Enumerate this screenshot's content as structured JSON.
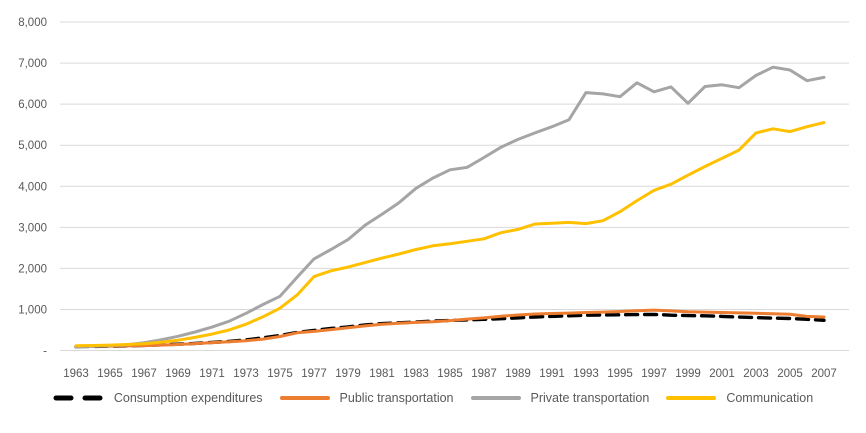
{
  "chart": {
    "background": "#FFFFFF",
    "grid_color": "#D9D9D9",
    "label_color": "#595959",
    "y_axis": {
      "ticks": [
        {
          "value": 0,
          "label": "-"
        },
        {
          "value": 1000,
          "label": "1,000"
        },
        {
          "value": 2000,
          "label": "2,000"
        },
        {
          "value": 3000,
          "label": "3,000"
        },
        {
          "value": 4000,
          "label": "4,000"
        },
        {
          "value": 5000,
          "label": "5,000"
        },
        {
          "value": 6000,
          "label": "6,000"
        },
        {
          "value": 7000,
          "label": "7,000"
        },
        {
          "value": 8000,
          "label": "8,000"
        }
      ]
    },
    "x_axis": {
      "tick_years": [
        1963,
        1965,
        1967,
        1969,
        1971,
        1973,
        1975,
        1977,
        1979,
        1981,
        1983,
        1985,
        1987,
        1989,
        1991,
        1993,
        1995,
        1997,
        1999,
        2001,
        2003,
        2005,
        2007
      ]
    }
  },
  "chart_data": {
    "type": "line",
    "title": "",
    "xlabel": "",
    "ylabel": "",
    "ylim": [
      0,
      8000
    ],
    "grid": true,
    "legend_position": "bottom",
    "x": [
      1963,
      1964,
      1965,
      1966,
      1967,
      1968,
      1969,
      1970,
      1971,
      1972,
      1973,
      1974,
      1975,
      1976,
      1977,
      1978,
      1979,
      1980,
      1981,
      1982,
      1983,
      1984,
      1985,
      1986,
      1987,
      1988,
      1989,
      1990,
      1991,
      1992,
      1993,
      1994,
      1995,
      1996,
      1997,
      1998,
      1999,
      2000,
      2001,
      2002,
      2003,
      2004,
      2005,
      2006,
      2007
    ],
    "series": [
      {
        "name": "Consumption expenditures",
        "color": "#000000",
        "style": "dashed",
        "values": [
          95,
          100,
          105,
          113,
          123,
          138,
          153,
          173,
          198,
          222,
          258,
          310,
          365,
          440,
          490,
          535,
          575,
          620,
          655,
          675,
          695,
          715,
          730,
          745,
          760,
          775,
          795,
          815,
          830,
          845,
          860,
          865,
          870,
          875,
          880,
          860,
          850,
          845,
          830,
          815,
          800,
          790,
          780,
          760,
          735
        ]
      },
      {
        "name": "Public transportation",
        "color": "#ED7D31",
        "style": "solid",
        "values": [
          100,
          103,
          107,
          112,
          120,
          132,
          147,
          167,
          192,
          213,
          238,
          278,
          340,
          430,
          465,
          510,
          552,
          600,
          640,
          665,
          685,
          700,
          728,
          765,
          795,
          835,
          865,
          890,
          900,
          910,
          925,
          935,
          950,
          970,
          985,
          965,
          945,
          935,
          925,
          915,
          905,
          895,
          885,
          830,
          815
        ]
      },
      {
        "name": "Private transportation",
        "color": "#A5A5A5",
        "style": "solid",
        "values": [
          95,
          105,
          120,
          142,
          190,
          260,
          345,
          450,
          570,
          710,
          905,
          1120,
          1320,
          1780,
          2230,
          2460,
          2700,
          3050,
          3320,
          3600,
          3950,
          4200,
          4400,
          4460,
          4700,
          4950,
          5140,
          5300,
          5450,
          5620,
          6280,
          6250,
          6180,
          6520,
          6300,
          6420,
          6020,
          6430,
          6470,
          6400,
          6700,
          6900,
          6830,
          6570,
          6650
        ]
      },
      {
        "name": "Communication",
        "color": "#FFC000",
        "style": "solid",
        "values": [
          115,
          122,
          132,
          145,
          165,
          200,
          250,
          320,
          400,
          500,
          640,
          820,
          1030,
          1350,
          1800,
          1940,
          2030,
          2140,
          2250,
          2350,
          2460,
          2550,
          2600,
          2660,
          2720,
          2870,
          2950,
          3080,
          3100,
          3120,
          3090,
          3160,
          3380,
          3650,
          3900,
          4050,
          4270,
          4480,
          4680,
          4880,
          5300,
          5400,
          5330,
          5450,
          5550
        ]
      }
    ]
  }
}
